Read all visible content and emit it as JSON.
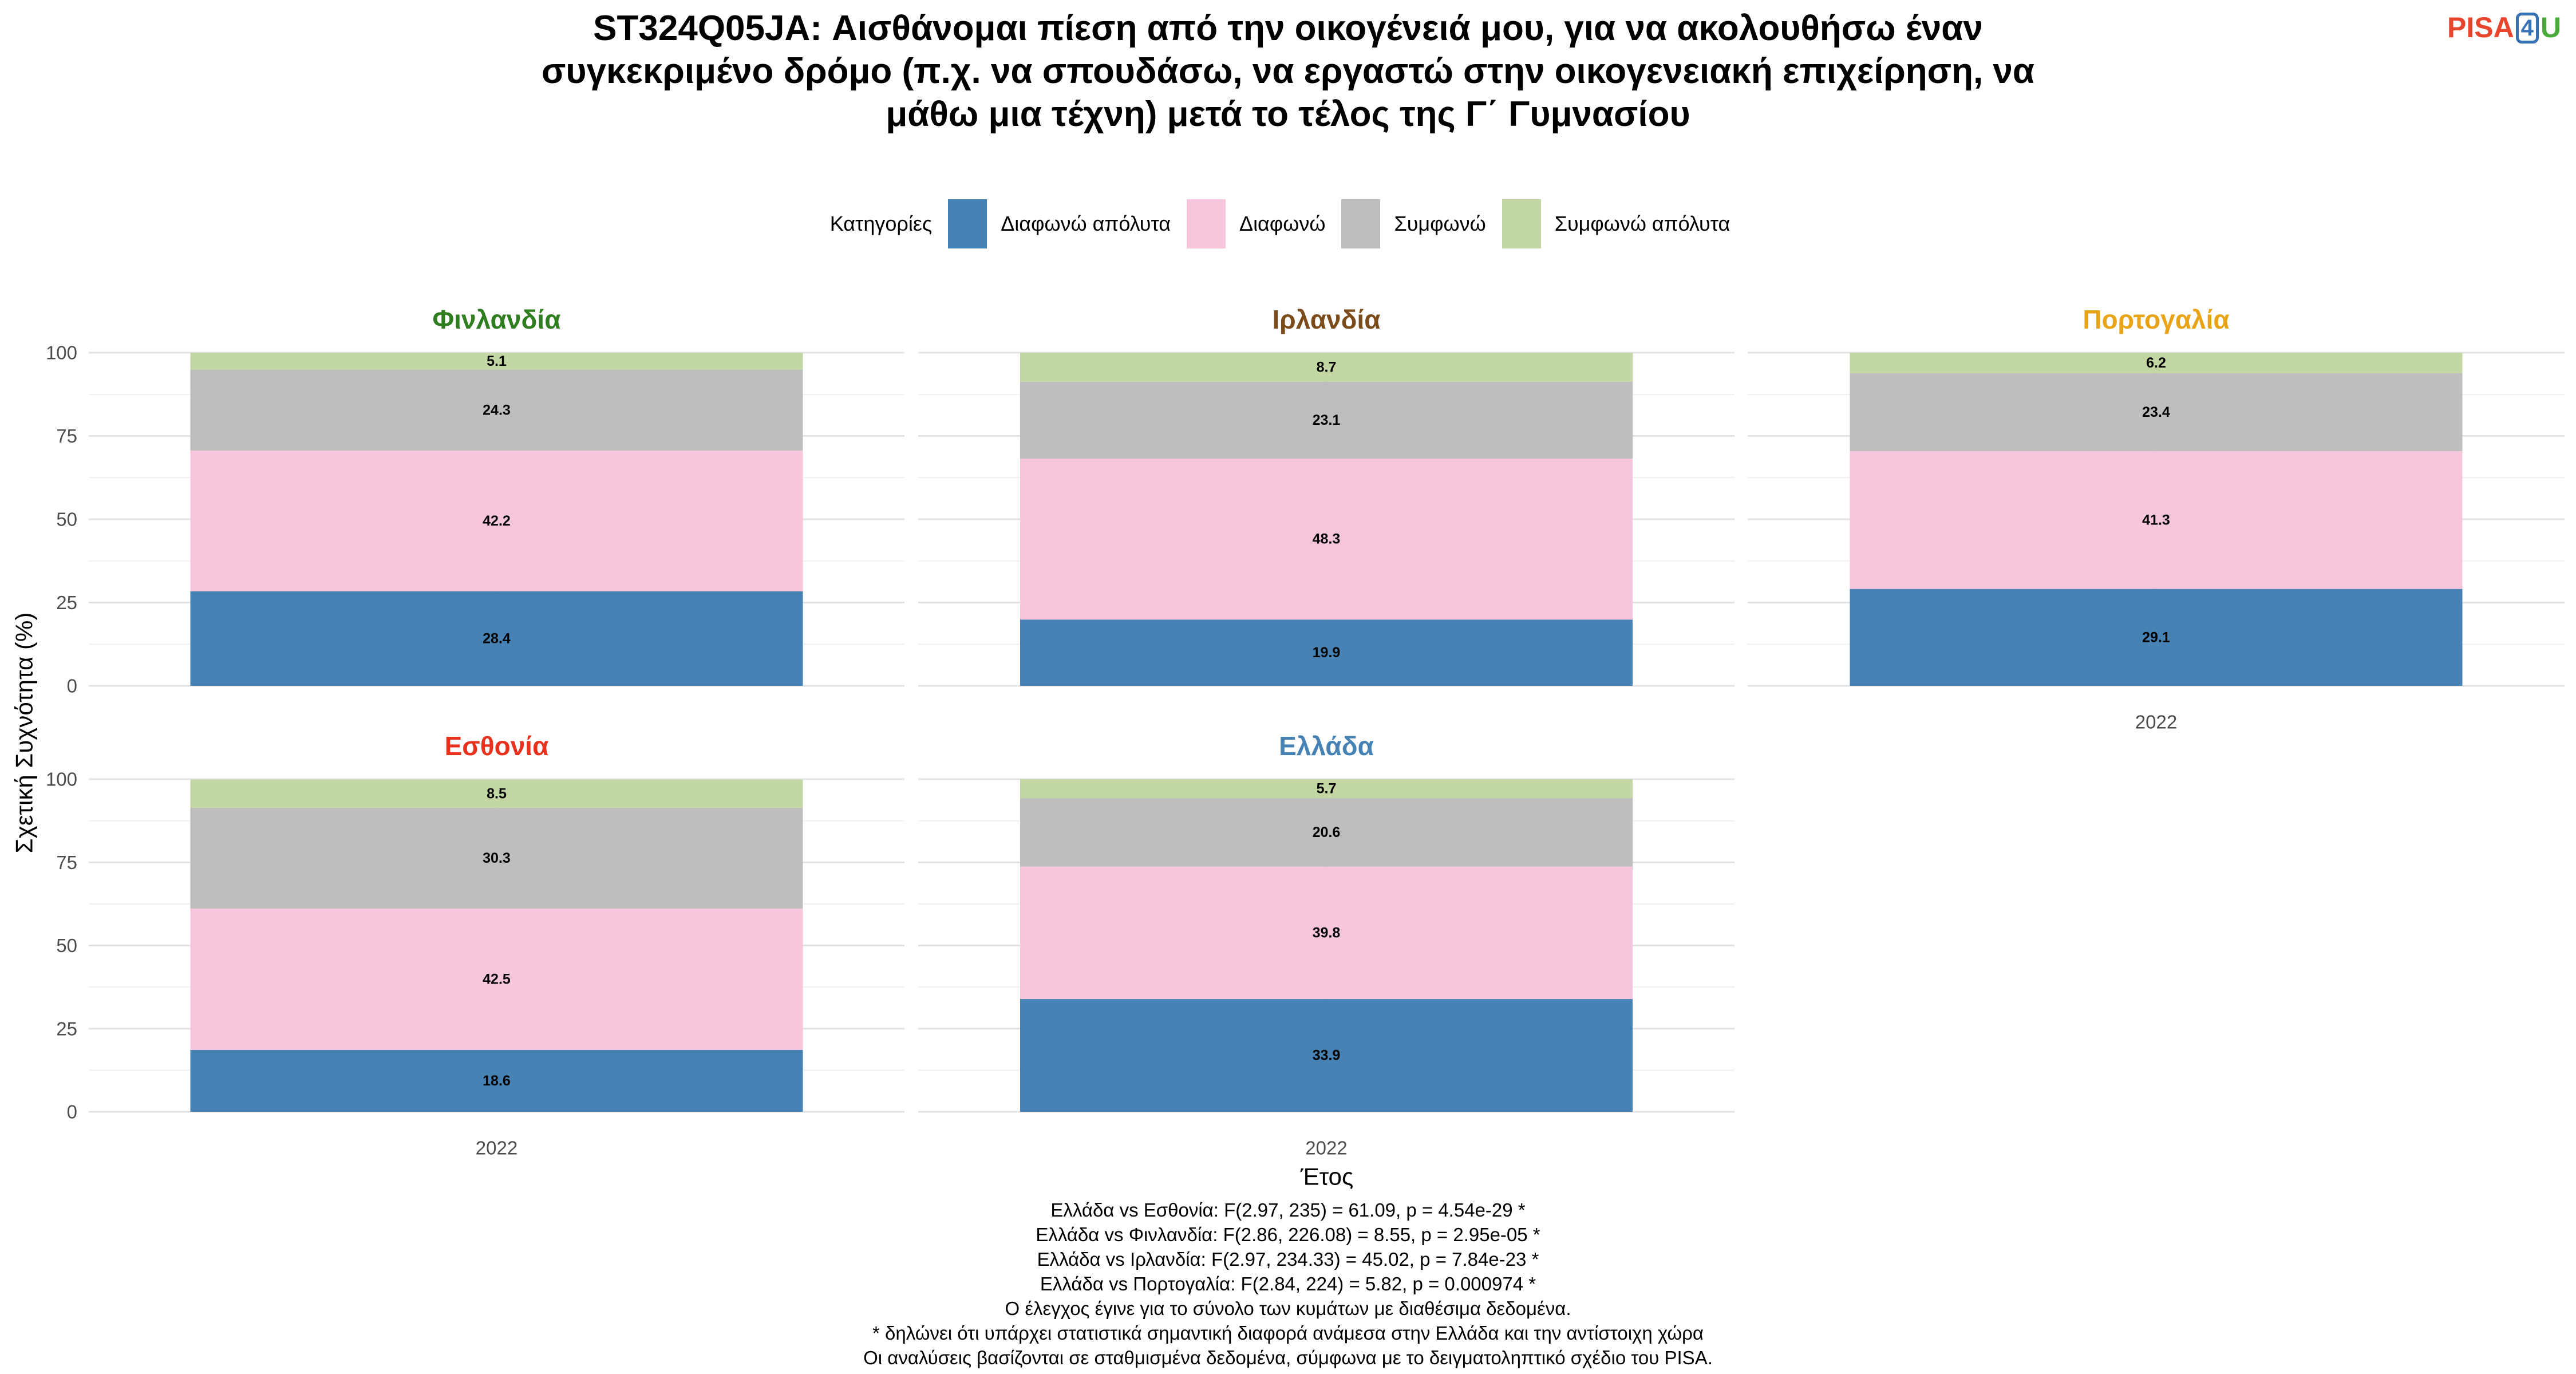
{
  "title": "ST324Q05JA: Αισθάνομαι πίεση από την οικογένειά μου, για να ακολουθήσω έναν συγκεκριμένο δρόμο (π.χ. να σπουδάσω, να εργαστώ στην οικογενειακή επιχείρηση, να μάθω μια τέχνη) μετά το τέλος της Γ΄ Γυμνασίου",
  "logo": {
    "part1": "PISA",
    "part2": "4",
    "part3": "U"
  },
  "legend": {
    "title": "Κατηγορίες",
    "position": "top",
    "items": [
      {
        "label": "Διαφωνώ απόλυτα",
        "color": "#4682b4"
      },
      {
        "label": "Διαφωνώ",
        "color": "#f7c6dc"
      },
      {
        "label": "Συμφωνώ",
        "color": "#bebebe"
      },
      {
        "label": "Συμφωνώ απόλυτα",
        "color": "#c2d7a4"
      }
    ]
  },
  "chart_data": {
    "type": "bar",
    "stacked": true,
    "xlabel": "Έτος",
    "ylabel": "Σχετική Συχνότητα (%)",
    "ylim": [
      0,
      100
    ],
    "yticks": [
      0,
      25,
      50,
      75,
      100
    ],
    "grid": true,
    "categories": [
      "2022"
    ],
    "panels": [
      {
        "title": "Φινλανδία",
        "title_color": "#2e7d1e",
        "values": [
          28.4,
          42.2,
          24.3,
          5.1
        ]
      },
      {
        "title": "Ιρλανδία",
        "title_color": "#7b4b1a",
        "values": [
          19.9,
          48.3,
          23.1,
          8.7
        ]
      },
      {
        "title": "Πορτογαλία",
        "title_color": "#e8a317",
        "values": [
          29.1,
          41.3,
          23.4,
          6.2
        ]
      },
      {
        "title": "Εσθονία",
        "title_color": "#e8321e",
        "values": [
          18.6,
          42.5,
          30.3,
          8.5
        ]
      },
      {
        "title": "Ελλάδα",
        "title_color": "#4682b4",
        "values": [
          33.9,
          39.8,
          20.6,
          5.7
        ]
      }
    ]
  },
  "caption": [
    "Ελλάδα vs Εσθονία: F(2.97, 235) = 61.09, p = 4.54e-29 *",
    "Ελλάδα vs Φινλανδία: F(2.86, 226.08) = 8.55, p = 2.95e-05 *",
    "Ελλάδα vs Ιρλανδία: F(2.97, 234.33) = 45.02, p = 7.84e-23 *",
    "Ελλάδα vs Πορτογαλία: F(2.84, 224) = 5.82, p = 0.000974 *",
    "Ο έλεγχος έγινε για το σύνολο των κυμάτων με διαθέσιμα δεδομένα.",
    "* δηλώνει ότι υπάρχει στατιστικά σημαντική διαφορά ανάμεσα στην Ελλάδα και την αντίστοιχη χώρα",
    "Οι αναλύσεις βασίζονται σε σταθμισμένα δεδομένα, σύμφωνα με το δειγματοληπτικό σχέδιο του PISA."
  ]
}
